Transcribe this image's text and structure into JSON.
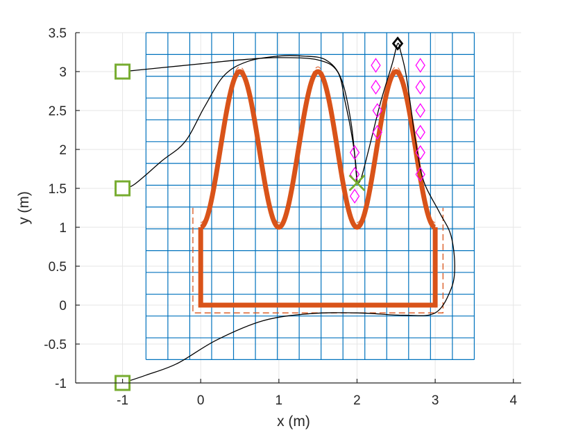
{
  "chart_data": {
    "type": "line",
    "title": "",
    "xlabel": "x (m)",
    "ylabel": "y (m)",
    "xlim": [
      -1.6,
      4.1
    ],
    "ylim": [
      -1,
      3.5
    ],
    "xticks": [
      -1,
      0,
      1,
      2,
      3,
      4
    ],
    "yticks": [
      -1,
      -0.5,
      0,
      0.5,
      1,
      1.5,
      2,
      2.5,
      3,
      3.5
    ],
    "xtick_labels": [
      "-1",
      "0",
      "1",
      "2",
      "3",
      "4"
    ],
    "ytick_labels": [
      "-1",
      "-0.5",
      "0",
      "0.5",
      "1",
      "1.5",
      "2",
      "2.5",
      "3",
      "3.5"
    ],
    "grid": true,
    "colors": {
      "grid": "#e6e6e6",
      "mesh": "#0072bd",
      "path": "#d95319",
      "trajectory": "#000000",
      "start": "#77ac30",
      "target": "#ff00ff",
      "goal": "#000000"
    },
    "mesh": {
      "x_range": [
        -0.7,
        3.5
      ],
      "y_range": [
        -0.7,
        3.5
      ],
      "nx": 15,
      "ny": 15
    },
    "reference_path": {
      "sine": {
        "x_range": [
          0,
          3
        ],
        "center": 2,
        "amplitude": 1,
        "period": 1
      },
      "rectangle": {
        "x0": 0,
        "x1": 3,
        "y0": 0,
        "y1": 1
      },
      "offset": 0.1
    },
    "start_points": [
      {
        "x": -1,
        "y": 3
      },
      {
        "x": -1,
        "y": 1.5
      },
      {
        "x": -1,
        "y": -1
      }
    ],
    "cross_point": {
      "x": 2,
      "y": 1.57
    },
    "goal_point": {
      "x": 2.52,
      "y": 3.36
    },
    "target_points": [
      {
        "x": 2.24,
        "y": 3.08
      },
      {
        "x": 2.81,
        "y": 3.08
      },
      {
        "x": 2.24,
        "y": 2.8
      },
      {
        "x": 2.81,
        "y": 2.8
      },
      {
        "x": 2.26,
        "y": 2.5
      },
      {
        "x": 2.81,
        "y": 2.5
      },
      {
        "x": 2.26,
        "y": 2.22
      },
      {
        "x": 2.81,
        "y": 2.22
      },
      {
        "x": 1.97,
        "y": 1.96
      },
      {
        "x": 2.81,
        "y": 1.96
      },
      {
        "x": 1.97,
        "y": 1.68
      },
      {
        "x": 2.81,
        "y": 1.68
      },
      {
        "x": 1.97,
        "y": 1.4
      }
    ],
    "trajectories": [
      {
        "points": [
          [
            -1,
            3
          ],
          [
            -0.5,
            3.05
          ],
          [
            0,
            3.1
          ],
          [
            0.5,
            3.15
          ],
          [
            1,
            3.18
          ],
          [
            1.5,
            3.15
          ],
          [
            1.75,
            3.0
          ],
          [
            1.85,
            2.6
          ],
          [
            1.93,
            2.2
          ],
          [
            1.98,
            1.85
          ],
          [
            2.0,
            1.57
          ]
        ]
      },
      {
        "points": [
          [
            -1,
            1.5
          ],
          [
            -0.85,
            1.55
          ],
          [
            -0.5,
            1.85
          ],
          [
            -0.2,
            2.1
          ],
          [
            0.05,
            2.55
          ],
          [
            0.3,
            2.95
          ],
          [
            0.6,
            3.13
          ],
          [
            1.0,
            3.2
          ],
          [
            1.3,
            3.2
          ],
          [
            1.6,
            3.15
          ],
          [
            1.8,
            2.9
          ],
          [
            1.93,
            2.3
          ],
          [
            2.0,
            1.57
          ]
        ]
      },
      {
        "points": [
          [
            -1,
            -1
          ],
          [
            -0.7,
            -0.9
          ],
          [
            -0.3,
            -0.75
          ],
          [
            0.2,
            -0.45
          ],
          [
            0.8,
            -0.2
          ],
          [
            1.4,
            -0.11
          ],
          [
            2.0,
            -0.1
          ],
          [
            2.6,
            -0.13
          ],
          [
            3.0,
            -0.1
          ],
          [
            3.2,
            0.2
          ],
          [
            3.25,
            0.5
          ],
          [
            3.2,
            0.9
          ],
          [
            3.05,
            1.2
          ],
          [
            2.85,
            1.6
          ],
          [
            2.75,
            2.1
          ],
          [
            2.68,
            2.6
          ],
          [
            2.62,
            3.0
          ],
          [
            2.56,
            3.25
          ],
          [
            2.52,
            3.36
          ],
          [
            2.45,
            3.1
          ],
          [
            2.3,
            2.6
          ],
          [
            2.15,
            2.0
          ],
          [
            2.05,
            1.62
          ],
          [
            2.0,
            1.57
          ]
        ]
      }
    ]
  }
}
